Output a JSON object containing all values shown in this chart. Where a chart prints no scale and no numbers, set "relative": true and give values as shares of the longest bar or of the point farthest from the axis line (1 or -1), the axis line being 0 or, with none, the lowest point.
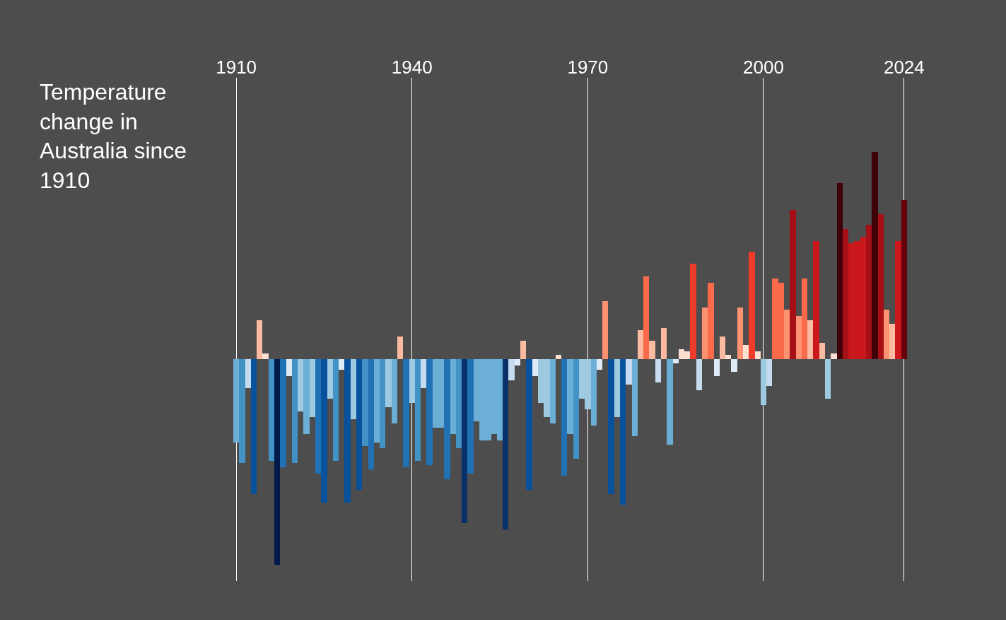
{
  "chart_data": {
    "type": "bar",
    "title": "Temperature change in Australia since 1910",
    "relative": true,
    "grid": "x",
    "x": [
      1910,
      1911,
      1912,
      1913,
      1914,
      1915,
      1916,
      1917,
      1918,
      1919,
      1920,
      1921,
      1922,
      1923,
      1924,
      1925,
      1926,
      1927,
      1928,
      1929,
      1930,
      1931,
      1932,
      1933,
      1934,
      1935,
      1936,
      1937,
      1938,
      1939,
      1940,
      1941,
      1942,
      1943,
      1944,
      1945,
      1946,
      1947,
      1948,
      1949,
      1950,
      1951,
      1952,
      1953,
      1954,
      1955,
      1956,
      1957,
      1958,
      1959,
      1960,
      1961,
      1962,
      1963,
      1964,
      1965,
      1966,
      1967,
      1968,
      1969,
      1970,
      1971,
      1972,
      1973,
      1974,
      1975,
      1976,
      1977,
      1978,
      1979,
      1980,
      1981,
      1982,
      1983,
      1984,
      1985,
      1986,
      1987,
      1988,
      1989,
      1990,
      1991,
      1992,
      1993,
      1994,
      1995,
      1996,
      1997,
      1998,
      1999,
      2000,
      2001,
      2002,
      2003,
      2004,
      2005,
      2006,
      2007,
      2008,
      2009,
      2010,
      2011,
      2012,
      2013,
      2014,
      2015,
      2016,
      2017,
      2018,
      2019,
      2020,
      2021,
      2022,
      2023,
      2024
    ],
    "values": [
      -0.4,
      -0.5,
      -0.14,
      -0.65,
      0.19,
      0.03,
      -0.49,
      -0.99,
      -0.52,
      -0.08,
      -0.5,
      -0.25,
      -0.36,
      -0.28,
      -0.55,
      -0.69,
      -0.19,
      -0.49,
      -0.05,
      -0.69,
      -0.29,
      -0.63,
      -0.42,
      -0.53,
      -0.4,
      -0.43,
      -0.23,
      -0.31,
      0.11,
      -0.52,
      -0.21,
      -0.49,
      -0.14,
      -0.51,
      -0.33,
      -0.33,
      -0.58,
      -0.36,
      -0.43,
      -0.79,
      -0.55,
      -0.3,
      -0.39,
      -0.39,
      -0.36,
      -0.39,
      -0.82,
      -0.1,
      -0.03,
      0.09,
      -0.63,
      -0.08,
      -0.21,
      -0.28,
      -0.31,
      0.02,
      -0.56,
      -0.36,
      -0.48,
      -0.19,
      -0.24,
      -0.32,
      -0.05,
      0.28,
      -0.65,
      -0.28,
      -0.7,
      -0.12,
      -0.37,
      0.14,
      0.4,
      0.09,
      -0.11,
      0.15,
      -0.41,
      -0.02,
      0.05,
      0.04,
      0.46,
      -0.15,
      0.25,
      0.37,
      -0.08,
      0.11,
      0.02,
      -0.06,
      0.25,
      0.07,
      0.52,
      0.04,
      -0.22,
      -0.13,
      0.39,
      0.37,
      0.24,
      0.72,
      0.21,
      0.39,
      0.19,
      0.57,
      0.08,
      -0.19,
      0.03,
      0.85,
      0.63,
      0.56,
      0.57,
      0.59,
      0.65,
      1.0,
      0.7,
      0.24,
      0.17,
      0.57,
      0.77
    ],
    "colors": [
      "#6baed6",
      "#4292c6",
      "#c6dbef",
      "#08519c",
      "#fcbba1",
      "#fee0d2",
      "#4292c6",
      "#001a4a",
      "#2171b5",
      "#deebf7",
      "#4292c6",
      "#9ecae1",
      "#6baed6",
      "#9ecae1",
      "#2171b5",
      "#08519c",
      "#9ecae1",
      "#4292c6",
      "#deebf7",
      "#08519c",
      "#9ecae1",
      "#08519c",
      "#4292c6",
      "#2171b5",
      "#6baed6",
      "#4292c6",
      "#9ecae1",
      "#6baed6",
      "#fcbba1",
      "#2171b5",
      "#9ecae1",
      "#4292c6",
      "#c6dbef",
      "#2171b5",
      "#6baed6",
      "#6baed6",
      "#2171b5",
      "#6baed6",
      "#4292c6",
      "#08306b",
      "#2171b5",
      "#6baed6",
      "#6baed6",
      "#6baed6",
      "#6baed6",
      "#6baed6",
      "#08306b",
      "#c6dbef",
      "#deebf7",
      "#fcbba1",
      "#08519c",
      "#deebf7",
      "#9ecae1",
      "#9ecae1",
      "#6baed6",
      "#fee0d2",
      "#2171b5",
      "#6baed6",
      "#4292c6",
      "#9ecae1",
      "#9ecae1",
      "#6baed6",
      "#deebf7",
      "#fc9272",
      "#08519c",
      "#9ecae1",
      "#08519c",
      "#c6dbef",
      "#6baed6",
      "#fcbba1",
      "#fb6a4a",
      "#fcbba1",
      "#c6dbef",
      "#fcbba1",
      "#6baed6",
      "#deebf7",
      "#fee0d2",
      "#fee0d2",
      "#ef3b2c",
      "#c6dbef",
      "#fc9272",
      "#fb6a4a",
      "#deebf7",
      "#fcbba1",
      "#fee0d2",
      "#deebf7",
      "#fc9272",
      "#fee0d2",
      "#ef3b2c",
      "#fee0d2",
      "#9ecae1",
      "#c6dbef",
      "#fb6a4a",
      "#fb6a4a",
      "#fc9272",
      "#a50f15",
      "#fc9272",
      "#fb6a4a",
      "#fcbba1",
      "#cb181d",
      "#fcbba1",
      "#9ecae1",
      "#fee0d2",
      "#3f0008",
      "#a50f15",
      "#cb181d",
      "#cb181d",
      "#cb181d",
      "#a50f15",
      "#3f0008",
      "#a50f15",
      "#fc9272",
      "#fcbba1",
      "#cb181d",
      "#67000d"
    ],
    "xlim": [
      1909.5,
      2024.5
    ],
    "xticks": [
      1910,
      1940,
      1970,
      2000,
      2024
    ]
  }
}
